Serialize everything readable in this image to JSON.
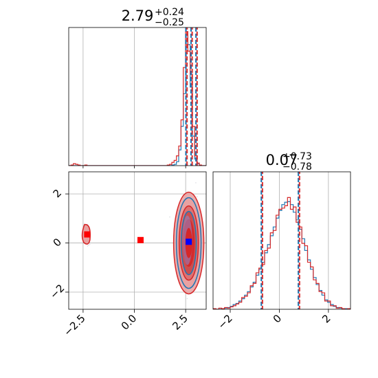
{
  "chart_data": [
    {
      "type": "histogram",
      "panel": "top-left",
      "title": {
        "value": "2.79",
        "plus": "+0.24",
        "minus": "−0.25"
      },
      "xlim": [
        -3.2,
        3.5
      ],
      "quantile_lines": [
        2.54,
        2.79,
        3.03
      ],
      "series": [
        {
          "color": "#1f77b4",
          "values": [
            0,
            0,
            0,
            0,
            0,
            0,
            0,
            0,
            0,
            0,
            0,
            0,
            0,
            0,
            0,
            0,
            0,
            0,
            0,
            0,
            0,
            0,
            0,
            0,
            0,
            0,
            0,
            0,
            0,
            0,
            0,
            0,
            0,
            0,
            0,
            0,
            0,
            0,
            0,
            0,
            0,
            0,
            0,
            0,
            0,
            1,
            2,
            6,
            24,
            60,
            110,
            200,
            185,
            120,
            45,
            10,
            3,
            0,
            0,
            0
          ]
        },
        {
          "color": "#d62728",
          "values": [
            0,
            1,
            3,
            2,
            1,
            0,
            0,
            1,
            0,
            0,
            0,
            0,
            0,
            0,
            0,
            0,
            0,
            0,
            0,
            0,
            0,
            0,
            0,
            0,
            0,
            0,
            0,
            0,
            0,
            0,
            0,
            0,
            0,
            0,
            0,
            0,
            0,
            0,
            0,
            0,
            0,
            0,
            0,
            1,
            2,
            5,
            8,
            15,
            30,
            70,
            150,
            205,
            175,
            140,
            60,
            15,
            4,
            1,
            0,
            0
          ]
        }
      ],
      "xticks": [
        -2.5,
        0.0,
        2.5
      ],
      "grid": true
    },
    {
      "type": "contour-scatter",
      "panel": "bottom-left",
      "xlim": [
        -3.2,
        3.5
      ],
      "ylim": [
        -2.7,
        2.9
      ],
      "xticks": [
        "−2.5",
        "0.0",
        "2.5"
      ],
      "yticks": [
        "−2",
        "0",
        "2"
      ],
      "markers": [
        {
          "x": 2.65,
          "y": 0.05,
          "color": "#0000ff"
        },
        {
          "x": 0.3,
          "y": 0.12,
          "color": "#ff0000"
        },
        {
          "x": -2.3,
          "y": 0.35,
          "color": "#ff0000"
        }
      ],
      "grid": true
    },
    {
      "type": "histogram",
      "panel": "bottom-right",
      "title": {
        "value": "0.07",
        "plus": "+0.73",
        "minus": "−0.78"
      },
      "xlim": [
        -2.7,
        2.9
      ],
      "xticks": [
        "−2",
        "0",
        "2"
      ],
      "quantile_lines": [
        -0.71,
        0.07,
        0.8
      ],
      "series": [
        {
          "color": "#1f77b4",
          "values": [
            0,
            0,
            0,
            1,
            2,
            3,
            5,
            8,
            10,
            14,
            18,
            24,
            30,
            38,
            46,
            58,
            68,
            80,
            96,
            110,
            125,
            140,
            155,
            168,
            178,
            182,
            183,
            178,
            165,
            152,
            136,
            120,
            100,
            84,
            68,
            54,
            42,
            32,
            24,
            16,
            12,
            8,
            5,
            3,
            2,
            1,
            1,
            0
          ]
        },
        {
          "color": "#d62728",
          "values": [
            1,
            0,
            2,
            1,
            3,
            2,
            4,
            6,
            9,
            12,
            20,
            22,
            28,
            40,
            44,
            62,
            70,
            76,
            100,
            104,
            130,
            134,
            160,
            170,
            172,
            176,
            190,
            170,
            174,
            148,
            140,
            112,
            108,
            80,
            72,
            50,
            44,
            30,
            28,
            14,
            14,
            6,
            6,
            2,
            3,
            1,
            0,
            1
          ]
        }
      ],
      "grid": true
    }
  ]
}
